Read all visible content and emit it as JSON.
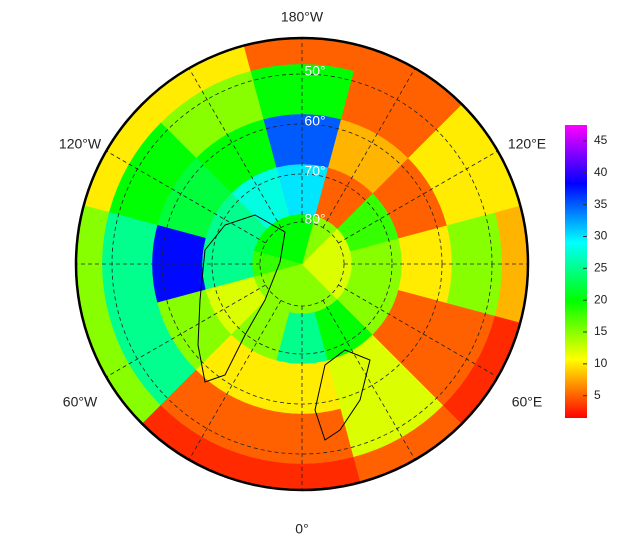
{
  "map": {
    "type": "polar-heatmap",
    "lon_labels": [
      "180°W",
      "120°W",
      "120°E",
      "60°W",
      "60°E",
      "0°"
    ],
    "lat_labels": [
      "50°",
      "60°",
      "70°",
      "80°"
    ],
    "colorbar": {
      "lim": [
        1.5,
        47.5
      ],
      "ticks": [
        5,
        10,
        15,
        20,
        25,
        30,
        35,
        40,
        45
      ]
    },
    "cells": [
      [
        15,
        25,
        10,
        5,
        3
      ],
      [
        15,
        20,
        12,
        12,
        5
      ],
      [
        12,
        15,
        5,
        5,
        3
      ],
      [
        12,
        15,
        10,
        15,
        8
      ],
      [
        12,
        18,
        5,
        10,
        10
      ],
      [
        15,
        5,
        8,
        5,
        5
      ],
      [
        20,
        30,
        35,
        20,
        5
      ],
      [
        20,
        28,
        20,
        15,
        10
      ],
      [
        20,
        25,
        22,
        20,
        10
      ],
      [
        18,
        25,
        38,
        25,
        15
      ],
      [
        15,
        12,
        15,
        25,
        15
      ],
      [
        15,
        15,
        10,
        5,
        3
      ]
    ]
  }
}
